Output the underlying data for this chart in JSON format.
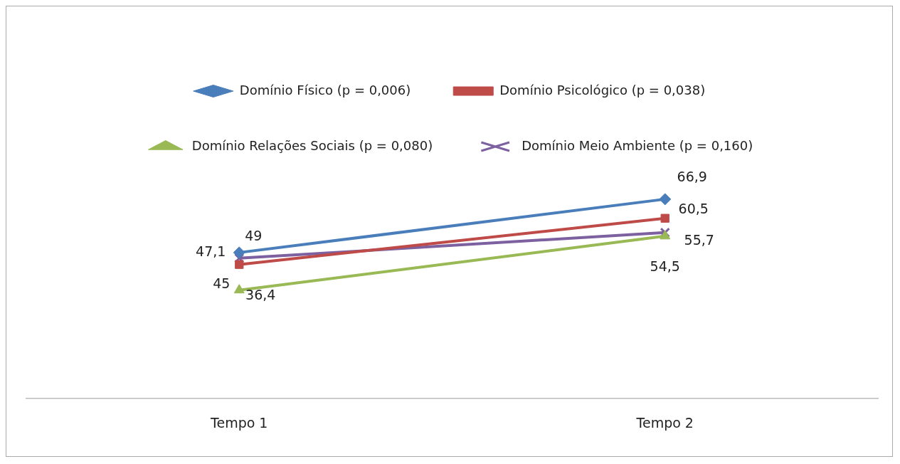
{
  "chart_data": {
    "type": "line",
    "categories": [
      "Tempo 1",
      "Tempo 2"
    ],
    "grid": false,
    "legend": "top",
    "series": [
      {
        "name": "Domínio Físico (p = 0,006)",
        "color": "#4a7ebb",
        "marker": "diamond",
        "values": [
          49,
          66.9
        ],
        "value_labels": [
          "49",
          "66,9"
        ]
      },
      {
        "name": "Domínio Psicológico (p = 0,038)",
        "color": "#be4b48",
        "marker": "square",
        "values": [
          45,
          60.5
        ],
        "value_labels": [
          "45",
          "60,5"
        ]
      },
      {
        "name": "Domínio Relações Sociais (p = 0,080)",
        "color": "#98b954",
        "marker": "triangle",
        "values": [
          36.4,
          54.5
        ],
        "value_labels": [
          "36,4",
          "54,5"
        ]
      },
      {
        "name": "Domínio Meio Ambiente (p = 0,160)",
        "color": "#7d60a0",
        "marker": "cross",
        "values": [
          47.1,
          55.7
        ],
        "value_labels": [
          "47,1",
          "55,7"
        ]
      }
    ]
  }
}
